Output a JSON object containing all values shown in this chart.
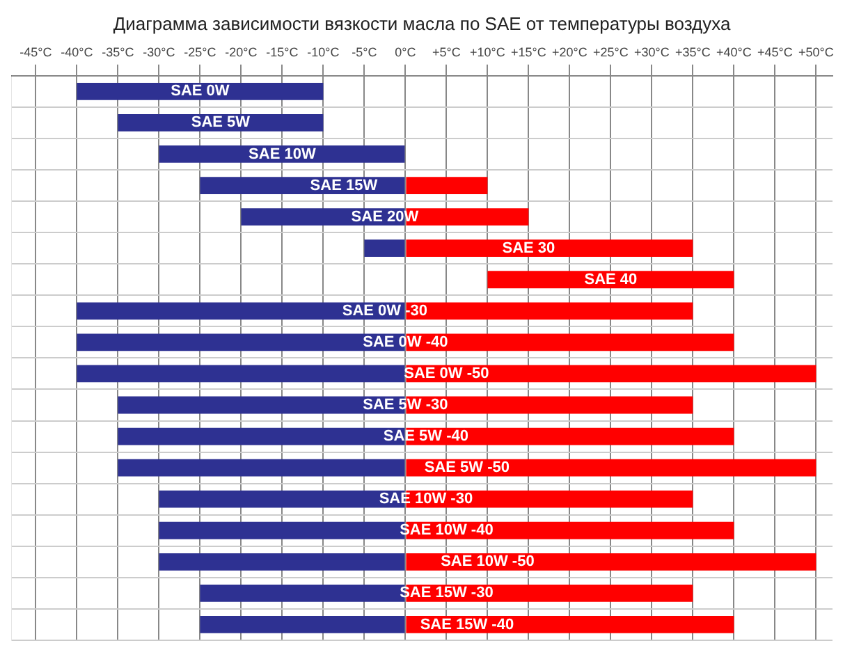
{
  "chart_data": {
    "type": "bar",
    "orientation": "horizontal",
    "title": "Диаграмма зависимости вязкости масла по SAE от температуры воздуха",
    "categories": [
      "SAE 0W",
      "SAE 5W",
      "SAE 10W",
      "SAE 15W",
      "SAE 20W",
      "SAE 30",
      "SAE 40",
      "SAE 0W -30",
      "SAE 0W -40",
      "SAE 0W -50",
      "SAE 5W -30",
      "SAE 5W -40",
      "SAE 5W -50",
      "SAE 10W -30",
      "SAE 10W -40",
      "SAE 10W -50",
      "SAE 15W -30",
      "SAE 15W -40"
    ],
    "series": [
      {
        "color": "#2e3192",
        "base": [
          -40,
          -35,
          -30,
          -25,
          -20,
          -5,
          null,
          -40,
          -40,
          -40,
          -35,
          -35,
          -35,
          -30,
          -30,
          -30,
          -25,
          -25
        ],
        "values": [
          30,
          25,
          30,
          25,
          20,
          5,
          null,
          40,
          40,
          40,
          35,
          35,
          35,
          30,
          30,
          30,
          25,
          25
        ]
      },
      {
        "color": "#ff0000",
        "base": [
          null,
          null,
          null,
          0,
          0,
          0,
          10,
          0,
          0,
          0,
          0,
          0,
          0,
          0,
          0,
          0,
          0,
          0
        ],
        "values": [
          null,
          null,
          null,
          10,
          15,
          35,
          30,
          35,
          40,
          50,
          35,
          40,
          50,
          35,
          40,
          50,
          35,
          40
        ]
      }
    ],
    "xlim": [
      -48,
      52
    ],
    "xticks": [
      {
        "value": -45,
        "label": "-45°C"
      },
      {
        "value": -40,
        "label": "-40°C"
      },
      {
        "value": -35,
        "label": "-35°C"
      },
      {
        "value": -30,
        "label": "-30°C"
      },
      {
        "value": -25,
        "label": "-25°C"
      },
      {
        "value": -20,
        "label": "-20°C"
      },
      {
        "value": -15,
        "label": "-15°C"
      },
      {
        "value": -10,
        "label": "-10°C"
      },
      {
        "value": -5,
        "label": "-5°C"
      },
      {
        "value": 0,
        "label": "0°C"
      },
      {
        "value": 5,
        "label": "+5°C"
      },
      {
        "value": 10,
        "label": "+10°C"
      },
      {
        "value": 15,
        "label": "+15°C"
      },
      {
        "value": 20,
        "label": "+20°C"
      },
      {
        "value": 25,
        "label": "+25°C"
      },
      {
        "value": 30,
        "label": "+30°C"
      },
      {
        "value": 35,
        "label": "+35°C"
      },
      {
        "value": 40,
        "label": "+40°C"
      },
      {
        "value": 45,
        "label": "+45°C"
      },
      {
        "value": 50,
        "label": "+50°C"
      }
    ],
    "grid": true,
    "tick_labels": "x"
  }
}
